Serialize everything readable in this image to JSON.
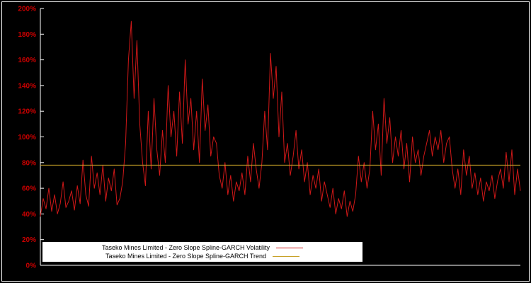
{
  "colors": {
    "background": "#000000",
    "frame": "#ffffff",
    "axis": "#ffffff",
    "tick_label": "#cc0000",
    "volatility_line": "#d01818",
    "trend_line": "#c8a228",
    "legend_background": "#ffffff",
    "legend_text": "#000000"
  },
  "chart_data": {
    "type": "line",
    "title": "",
    "xlabel": "",
    "ylabel": "",
    "ylim": [
      0,
      200
    ],
    "ytick_values": [
      0,
      20,
      40,
      60,
      80,
      100,
      120,
      140,
      160,
      180,
      200
    ],
    "ytick_labels": [
      "0%",
      "20%",
      "40%",
      "60%",
      "80%",
      "100%",
      "120%",
      "140%",
      "160%",
      "180%",
      "200%"
    ],
    "x_axis_labels_visible": false,
    "grid": "off",
    "legend_position": "bottom-left",
    "series": [
      {
        "name": "Taseko Mines Limited - Zero Slope Spline-GARCH Volatility",
        "color": "#d01818",
        "type": "line",
        "values": [
          38,
          52,
          44,
          60,
          42,
          55,
          40,
          48,
          65,
          45,
          50,
          58,
          43,
          62,
          48,
          82,
          55,
          46,
          85,
          60,
          72,
          55,
          78,
          50,
          68,
          58,
          75,
          47,
          52,
          65,
          95,
          160,
          190,
          130,
          175,
          110,
          80,
          62,
          120,
          75,
          130,
          90,
          70,
          105,
          80,
          140,
          100,
          120,
          85,
          135,
          95,
          160,
          110,
          130,
          90,
          120,
          80,
          145,
          105,
          125,
          85,
          100,
          95,
          70,
          60,
          80,
          55,
          70,
          50,
          65,
          58,
          72,
          55,
          85,
          65,
          95,
          75,
          60,
          80,
          120,
          90,
          165,
          130,
          155,
          100,
          135,
          80,
          95,
          70,
          85,
          105,
          75,
          90,
          65,
          80,
          55,
          70,
          60,
          75,
          50,
          65,
          55,
          45,
          60,
          40,
          52,
          44,
          58,
          38,
          50,
          42,
          55,
          85,
          65,
          80,
          60,
          75,
          120,
          90,
          110,
          70,
          130,
          95,
          115,
          80,
          100,
          85,
          105,
          75,
          95,
          65,
          100,
          80,
          90,
          70,
          85,
          95,
          105,
          85,
          100,
          90,
          105,
          80,
          95,
          100,
          75,
          60,
          75,
          55,
          90,
          70,
          85,
          60,
          72,
          55,
          68,
          50,
          65,
          58,
          70,
          52,
          66,
          75,
          60,
          88,
          65,
          90,
          55,
          75,
          58
        ]
      },
      {
        "name": "Taseko Mines Limited - Zero Slope Spline-GARCH Trend",
        "color": "#c8a228",
        "type": "constant",
        "value": 78
      }
    ]
  }
}
